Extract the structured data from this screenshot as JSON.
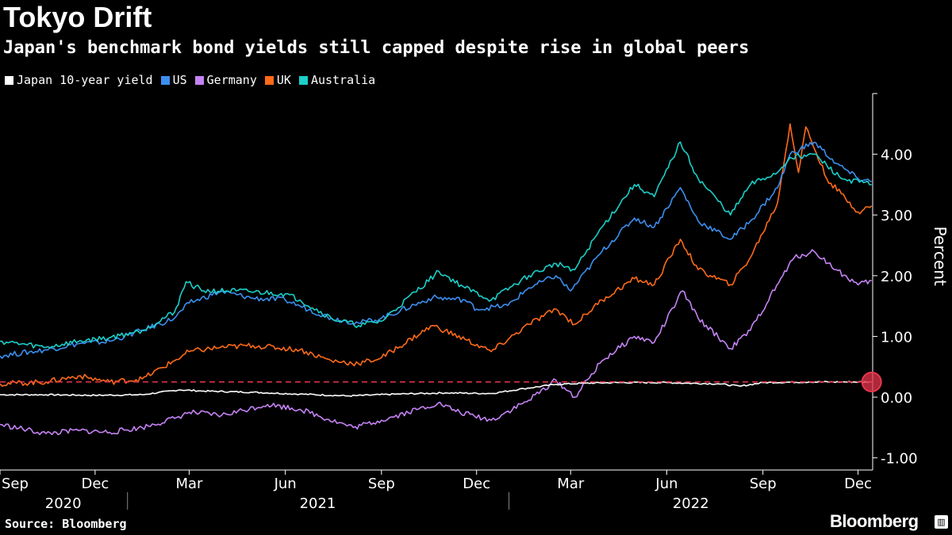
{
  "header": {
    "title": "Tokyo Drift",
    "subtitle": "Japan's benchmark bond yields still capped despite rise in global peers"
  },
  "footer": {
    "source": "Source: Bloomberg",
    "brand": "Bloomberg"
  },
  "chart_data": {
    "type": "line",
    "title": "Tokyo Drift",
    "subtitle": "Japan's benchmark bond yields still capped despite rise in global peers",
    "ylabel": "Percent",
    "xlabel": "",
    "ylim": [
      -1.2,
      5.0
    ],
    "y_ticks": [
      {
        "value": -1,
        "label": "-1.00"
      },
      {
        "value": 0,
        "label": "0.00"
      },
      {
        "value": 1,
        "label": "1.00"
      },
      {
        "value": 2,
        "label": "2.00"
      },
      {
        "value": 3,
        "label": "3.00"
      },
      {
        "value": 4,
        "label": "4.00"
      }
    ],
    "x_range": [
      "2020-09-01",
      "2022-12-15"
    ],
    "x_month_ticks": [
      {
        "label": "Sep",
        "date": "2020-09-01"
      },
      {
        "label": "Dec",
        "date": "2020-12-01"
      },
      {
        "label": "Mar",
        "date": "2021-03-01"
      },
      {
        "label": "Jun",
        "date": "2021-06-01"
      },
      {
        "label": "Sep",
        "date": "2021-09-01"
      },
      {
        "label": "Dec",
        "date": "2021-12-01"
      },
      {
        "label": "Mar",
        "date": "2022-03-01"
      },
      {
        "label": "Jun",
        "date": "2022-06-01"
      },
      {
        "label": "Sep",
        "date": "2022-09-01"
      },
      {
        "label": "Dec",
        "date": "2022-12-01"
      }
    ],
    "x_year_ticks": [
      {
        "label": "2020",
        "start": "2020-09-01",
        "end": "2020-12-31"
      },
      {
        "label": "2021",
        "start": "2021-01-01",
        "end": "2021-12-31"
      },
      {
        "label": "2022",
        "start": "2022-01-01",
        "end": "2022-12-15"
      }
    ],
    "reference_line": {
      "value": 0.25,
      "color": "#e8364e",
      "style": "dashed"
    },
    "marker": {
      "date": "2022-12-14",
      "value": 0.25,
      "color": "#e8364e"
    },
    "legend_position": "top-left",
    "grid": false,
    "series": [
      {
        "name": "Japan 10-year yield",
        "color": "#ffffff",
        "points": [
          [
            "2020-09-01",
            0.04
          ],
          [
            "2020-10-15",
            0.04
          ],
          [
            "2020-12-01",
            0.03
          ],
          [
            "2021-01-15",
            0.04
          ],
          [
            "2021-02-20",
            0.12
          ],
          [
            "2021-03-15",
            0.1
          ],
          [
            "2021-05-01",
            0.08
          ],
          [
            "2021-06-15",
            0.05
          ],
          [
            "2021-08-01",
            0.02
          ],
          [
            "2021-09-15",
            0.05
          ],
          [
            "2021-11-01",
            0.07
          ],
          [
            "2021-12-15",
            0.06
          ],
          [
            "2022-01-15",
            0.14
          ],
          [
            "2022-02-15",
            0.21
          ],
          [
            "2022-03-15",
            0.23
          ],
          [
            "2022-04-15",
            0.24
          ],
          [
            "2022-06-01",
            0.24
          ],
          [
            "2022-06-20",
            0.23
          ],
          [
            "2022-07-20",
            0.22
          ],
          [
            "2022-08-10",
            0.18
          ],
          [
            "2022-09-01",
            0.24
          ],
          [
            "2022-10-15",
            0.25
          ],
          [
            "2022-11-15",
            0.25
          ],
          [
            "2022-12-14",
            0.25
          ]
        ]
      },
      {
        "name": "US",
        "color": "#3b8ff0",
        "points": [
          [
            "2020-09-01",
            0.68
          ],
          [
            "2020-10-15",
            0.78
          ],
          [
            "2020-11-15",
            0.88
          ],
          [
            "2020-12-15",
            0.92
          ],
          [
            "2021-01-15",
            1.1
          ],
          [
            "2021-02-15",
            1.3
          ],
          [
            "2021-03-01",
            1.55
          ],
          [
            "2021-03-31",
            1.74
          ],
          [
            "2021-05-01",
            1.63
          ],
          [
            "2021-06-01",
            1.6
          ],
          [
            "2021-06-15",
            1.5
          ],
          [
            "2021-07-15",
            1.3
          ],
          [
            "2021-08-10",
            1.22
          ],
          [
            "2021-09-01",
            1.3
          ],
          [
            "2021-10-20",
            1.64
          ],
          [
            "2021-11-20",
            1.6
          ],
          [
            "2021-12-01",
            1.45
          ],
          [
            "2021-12-31",
            1.51
          ],
          [
            "2022-01-20",
            1.8
          ],
          [
            "2022-02-15",
            2.0
          ],
          [
            "2022-03-01",
            1.75
          ],
          [
            "2022-03-31",
            2.4
          ],
          [
            "2022-05-01",
            2.95
          ],
          [
            "2022-05-20",
            2.8
          ],
          [
            "2022-06-14",
            3.45
          ],
          [
            "2022-07-01",
            2.9
          ],
          [
            "2022-08-01",
            2.6
          ],
          [
            "2022-08-20",
            2.9
          ],
          [
            "2022-09-15",
            3.45
          ],
          [
            "2022-09-27",
            4.0
          ],
          [
            "2022-10-20",
            4.2
          ],
          [
            "2022-11-10",
            3.85
          ],
          [
            "2022-12-01",
            3.6
          ],
          [
            "2022-12-14",
            3.55
          ]
        ]
      },
      {
        "name": "Germany",
        "color": "#c583f5",
        "points": [
          [
            "2020-09-01",
            -0.45
          ],
          [
            "2020-10-15",
            -0.6
          ],
          [
            "2020-11-15",
            -0.55
          ],
          [
            "2020-12-15",
            -0.58
          ],
          [
            "2021-01-15",
            -0.5
          ],
          [
            "2021-02-15",
            -0.35
          ],
          [
            "2021-03-01",
            -0.25
          ],
          [
            "2021-04-01",
            -0.3
          ],
          [
            "2021-05-15",
            -0.12
          ],
          [
            "2021-06-15",
            -0.2
          ],
          [
            "2021-08-05",
            -0.5
          ],
          [
            "2021-09-01",
            -0.38
          ],
          [
            "2021-10-25",
            -0.1
          ],
          [
            "2021-11-15",
            -0.25
          ],
          [
            "2021-12-15",
            -0.38
          ],
          [
            "2022-01-20",
            -0.05
          ],
          [
            "2022-02-15",
            0.28
          ],
          [
            "2022-03-05",
            0.0
          ],
          [
            "2022-03-31",
            0.6
          ],
          [
            "2022-05-01",
            1.0
          ],
          [
            "2022-05-20",
            0.9
          ],
          [
            "2022-06-16",
            1.75
          ],
          [
            "2022-07-01",
            1.3
          ],
          [
            "2022-08-01",
            0.8
          ],
          [
            "2022-08-20",
            1.1
          ],
          [
            "2022-09-20",
            2.0
          ],
          [
            "2022-10-01",
            2.3
          ],
          [
            "2022-10-20",
            2.4
          ],
          [
            "2022-11-10",
            2.1
          ],
          [
            "2022-12-01",
            1.85
          ],
          [
            "2022-12-14",
            1.92
          ]
        ]
      },
      {
        "name": "UK",
        "color": "#ff6a1a",
        "points": [
          [
            "2020-09-01",
            0.22
          ],
          [
            "2020-10-15",
            0.25
          ],
          [
            "2020-11-15",
            0.35
          ],
          [
            "2020-12-15",
            0.25
          ],
          [
            "2021-01-15",
            0.3
          ],
          [
            "2021-02-15",
            0.6
          ],
          [
            "2021-03-01",
            0.75
          ],
          [
            "2021-03-31",
            0.82
          ],
          [
            "2021-05-01",
            0.85
          ],
          [
            "2021-06-15",
            0.78
          ],
          [
            "2021-07-15",
            0.6
          ],
          [
            "2021-08-10",
            0.55
          ],
          [
            "2021-09-01",
            0.65
          ],
          [
            "2021-10-20",
            1.18
          ],
          [
            "2021-11-20",
            0.95
          ],
          [
            "2021-12-15",
            0.75
          ],
          [
            "2022-01-20",
            1.2
          ],
          [
            "2022-02-15",
            1.45
          ],
          [
            "2022-03-05",
            1.2
          ],
          [
            "2022-03-31",
            1.6
          ],
          [
            "2022-05-01",
            1.95
          ],
          [
            "2022-05-20",
            1.85
          ],
          [
            "2022-06-14",
            2.6
          ],
          [
            "2022-07-01",
            2.1
          ],
          [
            "2022-08-01",
            1.85
          ],
          [
            "2022-08-20",
            2.3
          ],
          [
            "2022-09-15",
            3.2
          ],
          [
            "2022-09-27",
            4.5
          ],
          [
            "2022-10-05",
            3.7
          ],
          [
            "2022-10-12",
            4.45
          ],
          [
            "2022-11-01",
            3.6
          ],
          [
            "2022-12-01",
            3.05
          ],
          [
            "2022-12-14",
            3.15
          ]
        ]
      },
      {
        "name": "Australia",
        "color": "#1ccfc9",
        "points": [
          [
            "2020-09-01",
            0.92
          ],
          [
            "2020-10-15",
            0.82
          ],
          [
            "2020-11-15",
            0.92
          ],
          [
            "2020-12-15",
            0.98
          ],
          [
            "2021-01-15",
            1.1
          ],
          [
            "2021-02-15",
            1.4
          ],
          [
            "2021-02-26",
            1.9
          ],
          [
            "2021-03-15",
            1.75
          ],
          [
            "2021-04-15",
            1.75
          ],
          [
            "2021-06-01",
            1.7
          ],
          [
            "2021-06-15",
            1.6
          ],
          [
            "2021-07-15",
            1.3
          ],
          [
            "2021-08-10",
            1.18
          ],
          [
            "2021-09-01",
            1.25
          ],
          [
            "2021-10-26",
            2.07
          ],
          [
            "2021-11-20",
            1.8
          ],
          [
            "2021-12-15",
            1.6
          ],
          [
            "2022-01-20",
            2.0
          ],
          [
            "2022-02-15",
            2.2
          ],
          [
            "2022-03-05",
            2.1
          ],
          [
            "2022-03-31",
            2.8
          ],
          [
            "2022-05-01",
            3.5
          ],
          [
            "2022-05-20",
            3.3
          ],
          [
            "2022-06-14",
            4.2
          ],
          [
            "2022-07-01",
            3.6
          ],
          [
            "2022-08-01",
            3.0
          ],
          [
            "2022-08-20",
            3.5
          ],
          [
            "2022-09-15",
            3.7
          ],
          [
            "2022-09-27",
            3.95
          ],
          [
            "2022-10-20",
            4.0
          ],
          [
            "2022-11-15",
            3.6
          ],
          [
            "2022-12-14",
            3.5
          ]
        ]
      }
    ]
  }
}
